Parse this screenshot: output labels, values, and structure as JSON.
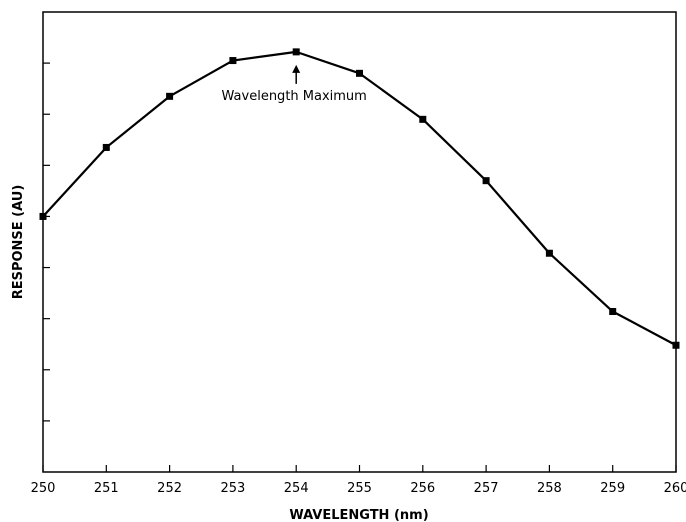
{
  "chart_data": {
    "type": "line",
    "title": "",
    "xlabel": "WAVELENGTH (nm)",
    "ylabel": "RESPONSE (AU)",
    "x": [
      250,
      251,
      252,
      253,
      254,
      255,
      256,
      257,
      258,
      259,
      260
    ],
    "series": [
      {
        "values": [
          5.0,
          6.35,
          7.35,
          8.05,
          8.22,
          7.8,
          6.9,
          5.7,
          4.28,
          3.14,
          2.48
        ]
      }
    ],
    "xlim": [
      250,
      260
    ],
    "ylim": [
      0,
      9
    ],
    "x_ticks": [
      "250",
      "251",
      "252",
      "253",
      "254",
      "255",
      "256",
      "257",
      "258",
      "259",
      "260"
    ],
    "y_ticks_count": 8,
    "grid": false,
    "y_tick_labels_shown": false,
    "annotation": {
      "text": "Wavelength Maximum",
      "x": 254
    },
    "colors": {
      "line": "#000000",
      "marker": "#000000"
    }
  }
}
